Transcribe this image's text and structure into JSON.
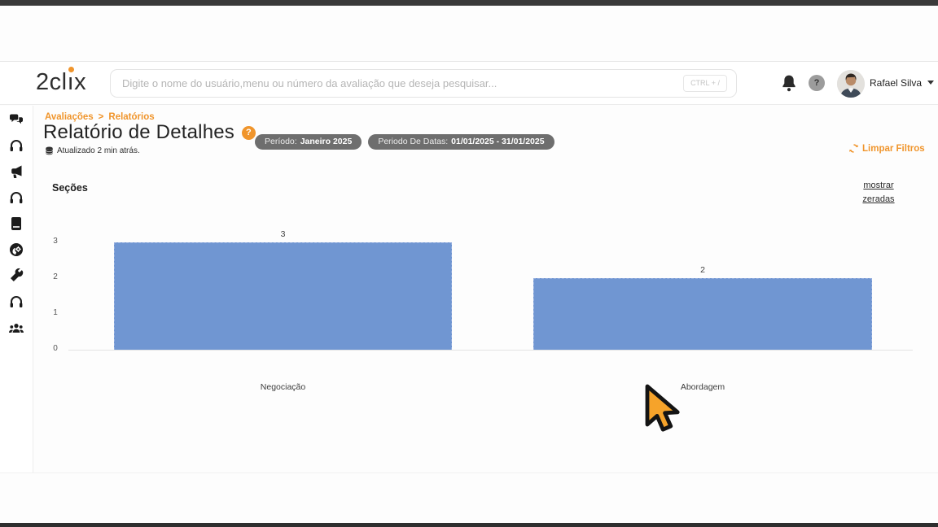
{
  "header": {
    "logo": {
      "pre": "2cl",
      "i_char": "ı",
      "post": "x"
    },
    "search_placeholder": "Digite o nome do usuário,menu ou número da avaliação que deseja pesquisar...",
    "search_shortcut": "CTRL + /",
    "help_badge": "?",
    "user_name": "Rafael Silva"
  },
  "sidebar": {
    "items": [
      {
        "icon": "comments-icon"
      },
      {
        "icon": "headset-icon"
      },
      {
        "icon": "megaphone-icon"
      },
      {
        "icon": "headset-icon"
      },
      {
        "icon": "book-icon"
      },
      {
        "icon": "user-gear-icon"
      },
      {
        "icon": "wrench-icon"
      },
      {
        "icon": "headset-icon"
      },
      {
        "icon": "users-group-icon"
      }
    ]
  },
  "page": {
    "breadcrumb": {
      "item1": "Avaliações",
      "separator": ">",
      "item2": "Relatórios"
    },
    "title": "Relatório de Detalhes",
    "title_badge": "?",
    "updated": "Atualizado 2 min atrás.",
    "filter_pills": [
      {
        "label": "Período:",
        "value": "Janeiro 2025"
      },
      {
        "label": "Periodo De Datas:",
        "value": "01/01/2025 - 31/01/2025"
      }
    ],
    "clear_filters": "Limpar Filtros",
    "show_zeros": "mostrar zeradas"
  },
  "chart_data": {
    "type": "bar",
    "title": "Seções",
    "categories": [
      "Negociação",
      "Abordagem"
    ],
    "values": [
      3,
      2
    ],
    "y_ticks": [
      0,
      1,
      2,
      3
    ],
    "ylim": [
      0,
      3
    ],
    "grid": false,
    "legend": false,
    "bar_color": "#7096d2",
    "bar_border_color": "#94aede"
  },
  "colors": {
    "accent": "#f0952c",
    "pill_bg": "#6e6e6e"
  }
}
